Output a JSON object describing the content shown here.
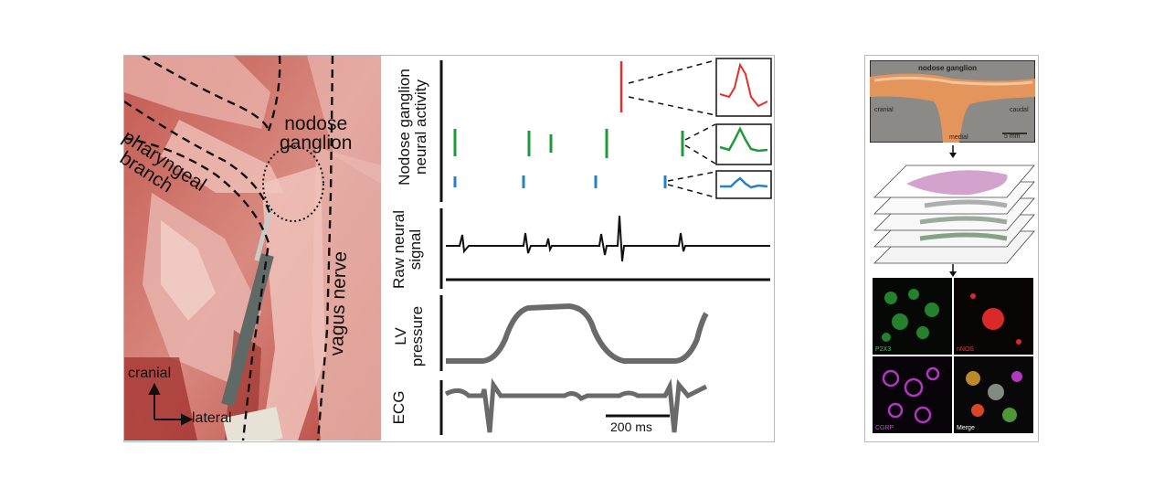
{
  "photo": {
    "labels": {
      "pharyngeal_line1": "pharyngeal",
      "pharyngeal_line2": "branch",
      "nodose_line1": "nodose",
      "nodose_line2": "ganglion",
      "vagus": "vagus nerve",
      "cranial": "cranial",
      "lateral": "lateral"
    }
  },
  "traces": {
    "neural_activity_line1": "Nodose ganglion",
    "neural_activity_line2": "neural activity",
    "raw_line1": "Raw neural",
    "raw_line2": "signal",
    "lv_line1": "LV",
    "lv_line2": "pressure",
    "ecg": "ECG",
    "scale_bar": "200 ms",
    "colors": {
      "red": "#e0302a",
      "green": "#1f9a3a",
      "blue": "#2a7fc0",
      "trace": "#6a6a6a"
    }
  },
  "histology": {
    "ganglion_title": "nodose ganglion",
    "cranial": "cranial",
    "caudal": "caudal",
    "medial": "medial",
    "scale": "5 mm",
    "stains": {
      "p2x3": "P2X3",
      "nnos": "nNOS",
      "cgrp": "CGRP",
      "merge": "Merge"
    },
    "stain_colors": {
      "p2x3": "#3ad24a",
      "nnos": "#ff3030",
      "cgrp": "#d040e0",
      "merge": "#ffffff"
    }
  }
}
